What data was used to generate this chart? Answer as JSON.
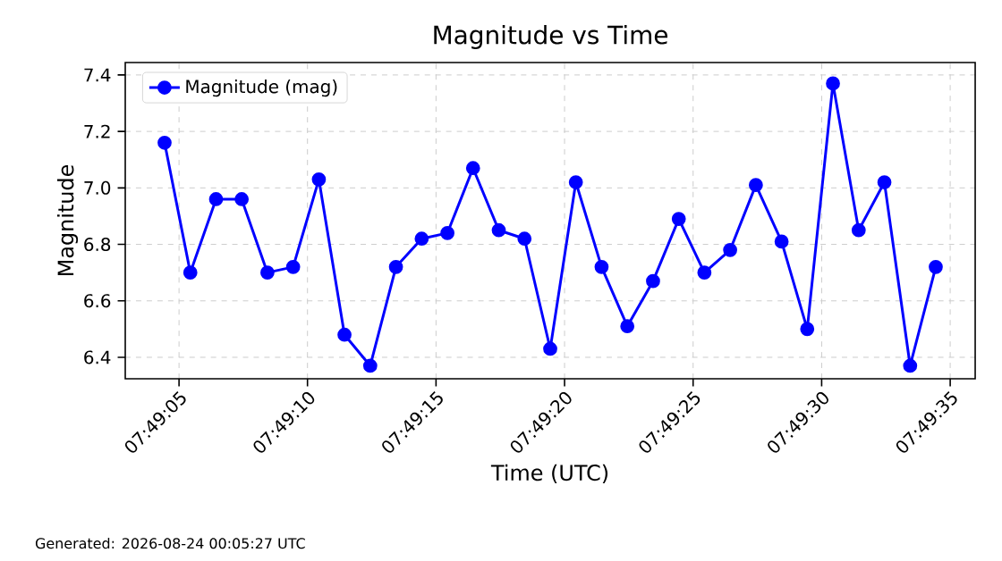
{
  "chart_data": {
    "type": "line",
    "title": "Magnitude vs Time",
    "xlabel": "Time (UTC)",
    "ylabel": "Magnitude",
    "x": [
      7.8179,
      7.818178,
      7.818456,
      7.818733,
      7.819011,
      7.819289,
      7.819567,
      7.819844,
      7.820122,
      7.8204,
      7.820678,
      7.820956,
      7.821233,
      7.821511,
      7.821789,
      7.822067,
      7.822344,
      7.822622,
      7.8229,
      7.823178,
      7.823456,
      7.823733,
      7.824011,
      7.824289,
      7.824567,
      7.824844,
      7.825122,
      7.8254,
      7.825678,
      7.825956,
      7.826233
    ],
    "series": [
      {
        "name": "Magnitude (mag)",
        "color": "#0000ff",
        "values": [
          7.16,
          6.7,
          6.96,
          6.96,
          6.7,
          6.72,
          7.03,
          6.48,
          6.37,
          6.72,
          6.82,
          6.84,
          7.07,
          6.85,
          6.82,
          6.43,
          7.02,
          6.72,
          6.51,
          6.67,
          6.89,
          6.7,
          6.78,
          7.01,
          6.81,
          6.5,
          7.37,
          6.85,
          7.02,
          6.37,
          6.72
        ]
      }
    ],
    "xlim": [
      7.817475,
      7.826659
    ],
    "ylim": [
      6.324,
      7.444
    ],
    "xticks": [
      {
        "value": 7.818056,
        "label": "07:49:05"
      },
      {
        "value": 7.819444,
        "label": "07:49:10"
      },
      {
        "value": 7.820833,
        "label": "07:49:15"
      },
      {
        "value": 7.822222,
        "label": "07:49:20"
      },
      {
        "value": 7.823611,
        "label": "07:49:25"
      },
      {
        "value": 7.825,
        "label": "07:49:30"
      },
      {
        "value": 7.826389,
        "label": "07:49:35"
      }
    ],
    "yticks": [
      6.4,
      6.6,
      6.8,
      {
        "value": 7.0,
        "label": "7.0"
      },
      7.2,
      7.4
    ],
    "grid": true,
    "legend": "top left",
    "marker": "circle",
    "line_style": "solid",
    "annotations": [
      "Generated: 2026-08-24 00:05:27 UTC"
    ]
  }
}
